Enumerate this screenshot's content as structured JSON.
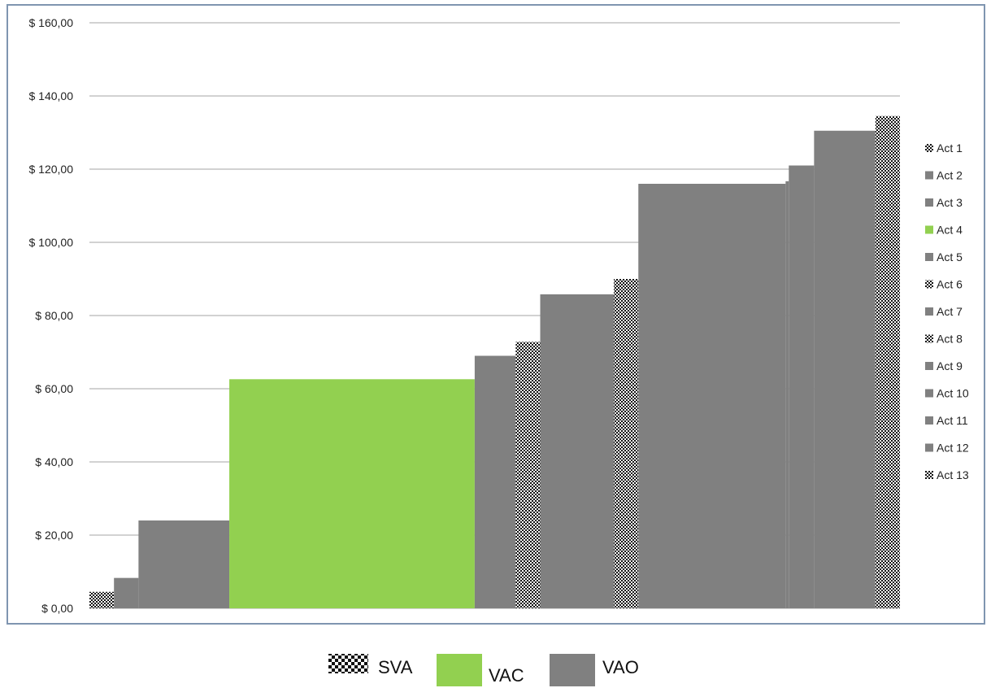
{
  "chart_data": {
    "type": "bar",
    "subtype": "step-width-bars",
    "y_tick_labels": [
      "$ 0,00",
      "$ 20,00",
      "$ 40,00",
      "$ 60,00",
      "$ 80,00",
      "$ 100,00",
      "$ 120,00",
      "$ 140,00",
      "$ 160,00"
    ],
    "ylim": [
      0,
      160
    ],
    "y_step": 20,
    "grid": true,
    "legend_placement": "right",
    "bars": [
      {
        "name": "Act 1",
        "category": "SVA",
        "value": 4.5,
        "width": 1.0
      },
      {
        "name": "Act 2",
        "category": "VAO",
        "value": 8.3,
        "width": 1.0
      },
      {
        "name": "Act 3",
        "category": "VAO",
        "value": 24.0,
        "width": 3.7
      },
      {
        "name": "Act 4",
        "category": "VAC",
        "value": 62.6,
        "width": 10.0
      },
      {
        "name": "Act 5",
        "category": "VAO",
        "value": 69.0,
        "width": 1.67
      },
      {
        "name": "Act 6",
        "category": "SVA",
        "value": 72.8,
        "width": 1.0
      },
      {
        "name": "Act 7",
        "category": "VAO",
        "value": 85.8,
        "width": 3.0
      },
      {
        "name": "Act 8",
        "category": "SVA",
        "value": 90.0,
        "width": 1.0
      },
      {
        "name": "Act 9",
        "category": "VAO",
        "value": 116.0,
        "width": 6.0
      },
      {
        "name": "Act 10",
        "category": "VAO",
        "value": 116.7,
        "width": 0.13
      },
      {
        "name": "Act 11",
        "category": "VAO",
        "value": 121.0,
        "width": 1.03
      },
      {
        "name": "Act 12",
        "category": "VAO",
        "value": 130.5,
        "width": 2.5
      },
      {
        "name": "Act 13",
        "category": "SVA",
        "value": 134.5,
        "width": 1.0
      }
    ],
    "legend_entries": [
      "Act 1",
      "Act 2",
      "Act 3",
      "Act 4",
      "Act 5",
      "Act 6",
      "Act 7",
      "Act 8",
      "Act 9",
      "Act 10",
      "Act 11",
      "Act 12",
      "Act 13"
    ],
    "category_legend": [
      {
        "key": "SVA",
        "label": "SVA",
        "fill": "checker"
      },
      {
        "key": "VAC",
        "label": "VAC",
        "color": "#92d050"
      },
      {
        "key": "VAO",
        "label": "VAO",
        "color": "#808080"
      }
    ],
    "colors": {
      "VAC": "#92d050",
      "VAO": "#808080",
      "SVA_dark": "#111111",
      "SVA_light": "#ffffff",
      "grid": "#a6a6a6"
    }
  }
}
